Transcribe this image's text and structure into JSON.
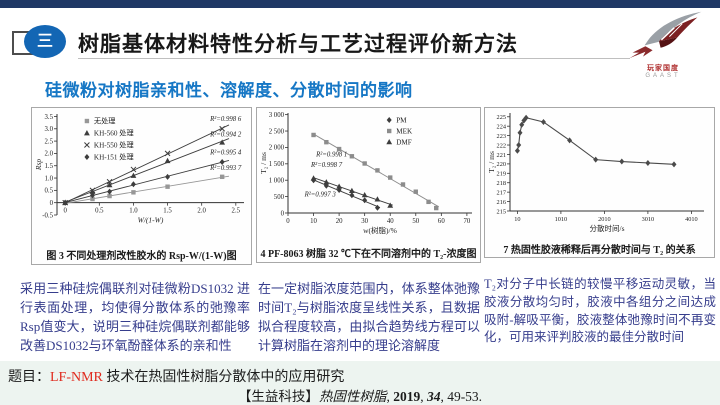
{
  "header": {
    "section_number": "三",
    "title": "树脂基体材料特性分析与工艺过程评价新方法",
    "subtitle": "硅微粉对树脂亲和性、溶解度、分散时间的影响"
  },
  "logo": {
    "caption_cn": "玩家国度",
    "caption_en": "GAAST"
  },
  "colors": {
    "top_bar": "#1f3865",
    "badge_blue": "#1366b4",
    "subtitle_blue": "#1677c5",
    "body_text": "#363d8c",
    "footer_bg": "#edf4f0",
    "highlight_red": "#e02a1e"
  },
  "chart_data": [
    {
      "type": "scatter",
      "caption": "图 3  不同处理剂改性胶水的 Rsp-W/(1-W)图",
      "xlabel": "W/(1-W)",
      "ylabel": "Rsp",
      "xlabel_italic": true,
      "ylabel_italic": true,
      "xlim": [
        -0.12,
        2.62
      ],
      "ylim": [
        -0.5,
        3.6
      ],
      "x_axis_at": 0,
      "xticks": [
        0,
        0.5,
        1.0,
        1.5,
        2.0,
        2.5
      ],
      "xtick_labels": [
        "0",
        "0.5",
        "1.0",
        "1.5",
        "2.0",
        "2.5"
      ],
      "yticks": [
        -0.5,
        0,
        0.5,
        1.0,
        1.5,
        2.0,
        2.5,
        3.0,
        3.5
      ],
      "ytick_labels": [
        "-0.5",
        "0",
        "0.5",
        "1.0",
        "1.5",
        "2.0",
        "2.5",
        "3.0",
        "3.5"
      ],
      "margins": {
        "l": 24,
        "t": 5,
        "r": 4,
        "b": 26
      },
      "legend": {
        "fx": 0.16,
        "fy": 0.02,
        "dy": 12
      },
      "series": [
        {
          "name": "无处理",
          "marker": "square",
          "color": "#979797",
          "line": "fit",
          "line_to": 2.4,
          "x": [
            0,
            0.4,
            0.65,
            1.0,
            1.5,
            2.3
          ],
          "y": [
            0,
            0.15,
            0.27,
            0.42,
            0.65,
            1.05
          ]
        },
        {
          "name": "KH-560 处理",
          "marker": "triangle",
          "color": "#3d3d3d",
          "line": "fit",
          "line_to": 2.4,
          "x": [
            0,
            0.4,
            0.65,
            1.0,
            1.5,
            2.3
          ],
          "y": [
            0,
            0.45,
            0.72,
            1.1,
            1.7,
            2.45
          ]
        },
        {
          "name": "KH-550 处理",
          "marker": "x",
          "color": "#3d3d3d",
          "line": "fit",
          "line_to": 2.4,
          "x": [
            0,
            0.4,
            0.65,
            1.0,
            1.5,
            2.3
          ],
          "y": [
            0,
            0.5,
            0.85,
            1.35,
            2.0,
            3.0
          ]
        },
        {
          "name": "KH-151 处理",
          "marker": "diamond",
          "color": "#3d3d3d",
          "line": "fit",
          "line_to": 2.4,
          "x": [
            0,
            0.4,
            0.65,
            1.0,
            1.5,
            2.3
          ],
          "y": [
            0,
            0.3,
            0.45,
            0.75,
            1.05,
            1.65
          ]
        }
      ],
      "annotations": [
        {
          "x": 2.58,
          "y": 3.32,
          "text": "R²=0.998 6",
          "anchor": "end"
        },
        {
          "x": 2.58,
          "y": 2.68,
          "text": "R²=0.994 2",
          "anchor": "end"
        },
        {
          "x": 2.58,
          "y": 1.95,
          "text": "R²=0.995 4",
          "anchor": "end"
        },
        {
          "x": 2.58,
          "y": 1.32,
          "text": "R²=0.993 7",
          "anchor": "end"
        }
      ]
    },
    {
      "type": "scatter",
      "caption": "4  PF-8063 树脂 32 ℃下在不同溶剂中的 T₂-浓度图",
      "xlabel": "w(树脂)/%",
      "ylabel": "T₂ / ms",
      "xlim": [
        0,
        72
      ],
      "ylim": [
        0,
        3050
      ],
      "xticks": [
        0,
        10,
        20,
        30,
        40,
        50,
        60,
        70
      ],
      "xtick_labels": [
        "0",
        "10",
        "20",
        "30",
        "40",
        "50",
        "60",
        "70"
      ],
      "yticks": [
        0,
        500,
        1000,
        1500,
        2000,
        2500,
        3000
      ],
      "ytick_labels": [
        "0",
        "500",
        "1 000",
        "1 500",
        "2 000",
        "2 500",
        "3 000"
      ],
      "margins": {
        "l": 30,
        "t": 4,
        "r": 6,
        "b": 26
      },
      "legend": {
        "fx": 0.55,
        "fy": 0.02,
        "dy": 11
      },
      "series": [
        {
          "name": "PM",
          "marker": "diamond",
          "color": "#3d3d3d",
          "line": "fit",
          "line_to": 36,
          "x": [
            10,
            15,
            20,
            25,
            30,
            35
          ],
          "y": [
            1000,
            830,
            700,
            540,
            390,
            160
          ]
        },
        {
          "name": "MEK",
          "marker": "square",
          "color": "#8c8c8c",
          "line": "fit",
          "line_to": 59,
          "x": [
            10,
            15,
            20,
            25,
            30,
            35,
            40,
            45,
            50,
            55,
            58
          ],
          "y": [
            2380,
            2160,
            1950,
            1730,
            1510,
            1300,
            1080,
            870,
            650,
            340,
            150
          ]
        },
        {
          "name": "DMF",
          "marker": "triangle",
          "color": "#3d3d3d",
          "line": "fit",
          "line_to": 41,
          "x": [
            10,
            15,
            20,
            25,
            30,
            35,
            40
          ],
          "y": [
            1060,
            940,
            810,
            680,
            550,
            420,
            230
          ]
        }
      ],
      "annotations": [
        {
          "x": 11,
          "y": 1720,
          "text": "R²=0.998 1",
          "anchor": "start"
        },
        {
          "x": 9,
          "y": 1400,
          "text": "R²=0.998 7",
          "anchor": "start"
        },
        {
          "x": 6.5,
          "y": 500,
          "text": "R²=0.997 3",
          "anchor": "start"
        }
      ]
    },
    {
      "type": "line",
      "caption": "7  热固性胶液稀释后再分散时间与 T₂ 的关系",
      "xlabel": "分散时间/s",
      "ylabel": "T₂ / ms",
      "xlim": [
        -160,
        4300
      ],
      "ylim": [
        215,
        225.4
      ],
      "xticks": [
        10,
        1010,
        2010,
        3010,
        4010
      ],
      "xtick_labels": [
        "10",
        "1010",
        "2010",
        "3010",
        "4010"
      ],
      "yticks": [
        215,
        216,
        217,
        218,
        219,
        220,
        221,
        222,
        223,
        224,
        225
      ],
      "ytick_labels": [
        "215",
        "216",
        "217",
        "218",
        "219",
        "220",
        "221",
        "222",
        "223",
        "224",
        "225"
      ],
      "tick_font": 6.3,
      "margins": {
        "l": 24,
        "t": 4,
        "r": 8,
        "b": 24
      },
      "series": [
        {
          "name": "热固性胶液",
          "marker": "diamond",
          "color": "#4a4a4a",
          "line": "poly",
          "in_legend": false,
          "x": [
            10,
            40,
            70,
            110,
            160,
            210,
            610,
            1210,
            1810,
            2410,
            3010,
            3610
          ],
          "y": [
            221.4,
            222.0,
            223.3,
            224.15,
            224.6,
            224.9,
            224.45,
            222.5,
            220.45,
            220.25,
            220.1,
            219.95
          ]
        }
      ],
      "annotations": []
    }
  ],
  "findings": {
    "left": "采用三种硅烷偶联剂对硅微粉DS1032 进行表面处理，均使得分散体系的弛豫率Rsp值变大，说明三种硅烷偶联剂都能够改善DS1032与环氧酚醛体系的亲和性",
    "middle": "在一定树脂浓度范围内，体系整体弛豫时间T₂与树脂浓度呈线性关系，且数据拟合程度较高，由拟合趋势线方程可以计算树脂在溶剂中的理论溶解度",
    "right": "T₂对分子中长链的较慢平移运动灵敏，当胶液分散均匀时，胶液中各组分之间达成吸附-解吸平衡，胶液整体弛豫时间不再变化，可用来评判胶液的最佳分散时间"
  },
  "footer": {
    "label": "题目：",
    "highlight": "LF-NMR",
    "title_rest": " 技术在热固性树脂分散体中的应用研究",
    "source_prefix": "【生益科技】",
    "journal": "热固性树脂",
    "sep1": ", ",
    "year": "2019",
    "sep2": ", ",
    "volume": "34",
    "pages": ", 49-53."
  }
}
